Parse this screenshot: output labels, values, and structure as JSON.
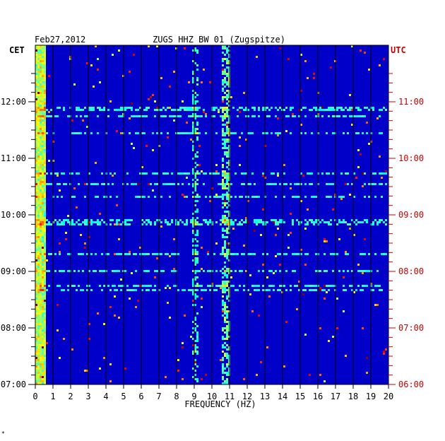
{
  "header": {
    "date": "Feb27,2012",
    "station": "ZUGS HHZ BW 01 (Zugspitze)",
    "left_tz": "CET",
    "right_tz": "UTC"
  },
  "footer": {
    "mark": "*"
  },
  "colors": {
    "background": "#0000c8",
    "left_label": "#000000",
    "right_label": "#cc0000",
    "grid": "#000000"
  },
  "chart_data": {
    "type": "heatmap",
    "title": "ZUGS HHZ BW 01 (Zugspitze)",
    "xlabel": "FREQUENCY (HZ)",
    "xlim": [
      0,
      20
    ],
    "x_ticks": [
      "0",
      "1",
      "2",
      "3",
      "4",
      "5",
      "6",
      "7",
      "8",
      "9",
      "10",
      "11",
      "12",
      "13",
      "14",
      "15",
      "16",
      "17",
      "18",
      "19",
      "20"
    ],
    "y_left_ticks": [
      "12:00",
      "11:00",
      "10:00",
      "09:00",
      "08:00",
      "07:00"
    ],
    "y_right_ticks": [
      "11:00",
      "10:00",
      "09:00",
      "08:00",
      "07:00",
      "06:00"
    ],
    "y_range_cet": [
      "07:00",
      "12:30"
    ],
    "colormap": "jet",
    "grid": true
  }
}
